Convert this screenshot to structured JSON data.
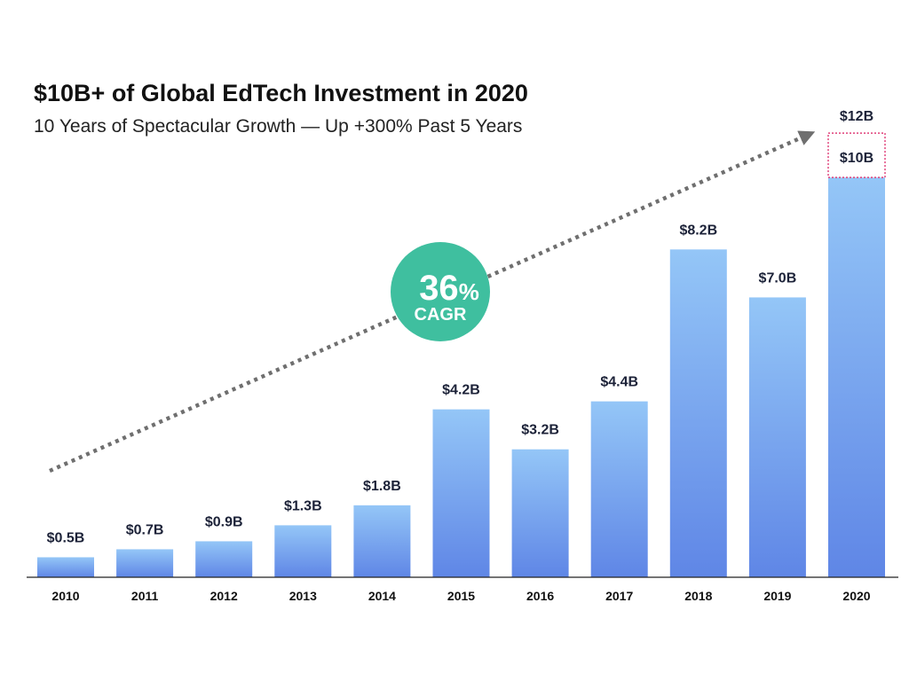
{
  "colors": {
    "bar_top": "#94c6f7",
    "bar_bottom": "#5f86e6",
    "badge": "#3fbf9f",
    "trend_arrow": "#6f6f6f",
    "projection_box": "#e0407a",
    "axis": "#222222"
  },
  "chart_data": {
    "type": "bar",
    "title": "$10B+ of Global EdTech Investment in 2020",
    "subtitle": "10 Years of Spectacular Growth — Up +300% Past 5 Years",
    "xlabel": "",
    "ylabel": "",
    "categories": [
      "2010",
      "2011",
      "2012",
      "2013",
      "2014",
      "2015",
      "2016",
      "2017",
      "2018",
      "2019",
      "2020"
    ],
    "values": [
      0.5,
      0.7,
      0.9,
      1.3,
      1.8,
      4.2,
      3.2,
      4.4,
      8.2,
      7.0,
      10
    ],
    "value_labels": [
      "$0.5B",
      "$0.7B",
      "$0.9B",
      "$1.3B",
      "$1.8B",
      "$4.2B",
      "$3.2B",
      "$4.4B",
      "$8.2B",
      "$7.0B",
      "$10B"
    ],
    "projection": {
      "category": "2020",
      "value": 12,
      "label": "$12B",
      "style": "dotted-outline"
    },
    "ylim": [
      0,
      12
    ],
    "grid": false,
    "legend": "none",
    "annotations": {
      "trend_arrow": "dotted",
      "cagr_value": "36",
      "cagr_unit": "%",
      "cagr_label": "CAGR"
    }
  }
}
